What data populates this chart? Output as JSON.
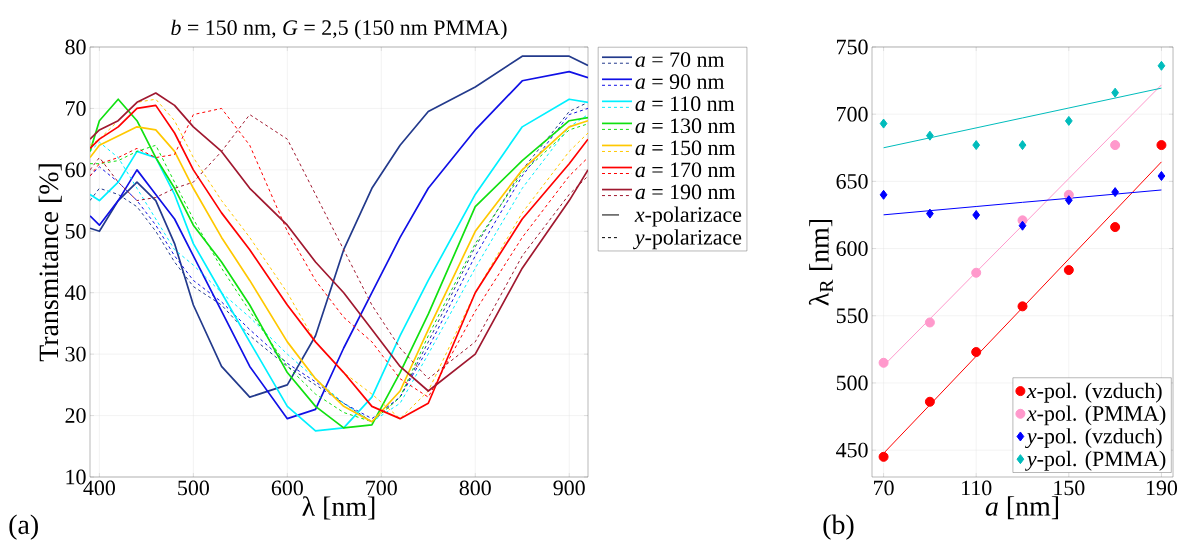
{
  "chart_data": [
    {
      "type": "line",
      "title": "*b* =  150 nm, *G* =  2,5 (150 nm PMMA)",
      "xlabel": "λ [nm]",
      "ylabel": "Transmitance [%]",
      "annotations": [
        "(a)",
        "*x*-polarizace",
        "*y*-polarizace"
      ],
      "x": [
        390,
        400,
        420,
        440,
        460,
        480,
        500,
        530,
        560,
        600,
        630,
        660,
        690,
        720,
        750,
        800,
        850,
        900,
        920
      ],
      "xlim": [
        390,
        920
      ],
      "ylim": [
        10,
        80
      ],
      "xticks": [
        400,
        500,
        600,
        700,
        800,
        900
      ],
      "yticks": [
        10,
        20,
        30,
        40,
        50,
        60,
        70,
        80
      ],
      "grid": true,
      "legend": "right",
      "series": [
        {
          "name": "*a* =  70 nm",
          "color": "#233a8c",
          "line_style": "solid",
          "values": [
            50.5,
            50,
            55,
            58,
            55,
            48,
            38,
            28,
            23,
            25,
            33,
            47,
            57,
            64,
            69.5,
            73.5,
            78.5,
            78.5,
            77
          ]
        },
        {
          "color": "#233a8c",
          "line_style": "dashed",
          "values": [
            55,
            57,
            56,
            54,
            50,
            45,
            41,
            38,
            33,
            28,
            25,
            22,
            19,
            23,
            32,
            47.5,
            60,
            69.5,
            71
          ]
        },
        {
          "name": "*a* =  90 nm",
          "color": "#1010e6",
          "line_style": "solid",
          "values": [
            52.5,
            51,
            55,
            60,
            56,
            52,
            46,
            37,
            28,
            19.5,
            21,
            31,
            40,
            49,
            57,
            66.5,
            74.5,
            76,
            75
          ]
        },
        {
          "color": "#1010e6",
          "line_style": "dashed",
          "values": [
            59,
            60.5,
            58,
            55,
            51,
            46,
            42,
            38.5,
            34,
            28.5,
            25.5,
            22,
            19.5,
            23,
            31,
            46,
            59,
            69,
            70
          ]
        },
        {
          "name": "*a* =  110 nm",
          "color": "#00f0ff",
          "line_style": "solid",
          "values": [
            56,
            55,
            58,
            63,
            62,
            56,
            48,
            40,
            32,
            21.5,
            17.5,
            18,
            23,
            33,
            42,
            56,
            67,
            71.5,
            71
          ]
        },
        {
          "color": "#00f0ff",
          "line_style": "dashed",
          "values": [
            63,
            64.5,
            62,
            57,
            52,
            47,
            44.5,
            40,
            36,
            30,
            26,
            22,
            19,
            22,
            30,
            44,
            57,
            67,
            69
          ]
        },
        {
          "name": "*a* =  130 nm",
          "color": "#10e010",
          "line_style": "solid",
          "values": [
            63,
            68,
            71.5,
            68,
            62,
            57,
            51,
            45,
            38,
            27,
            21.5,
            18,
            18.5,
            27,
            36.5,
            54,
            61.5,
            68,
            68.5
          ]
        },
        {
          "color": "#10e010",
          "line_style": "dashed",
          "values": [
            61,
            61,
            61.5,
            63,
            64,
            58,
            52,
            44,
            37,
            28,
            23.5,
            20.5,
            19,
            23,
            33,
            48,
            59.5,
            66.5,
            67.5
          ]
        },
        {
          "name": "*a* =  150 nm",
          "color": "#ffc800",
          "line_style": "solid",
          "values": [
            62,
            64,
            65.5,
            67,
            66.5,
            63,
            57,
            49,
            42,
            32,
            26,
            21.5,
            19,
            24,
            34,
            50,
            60,
            67,
            68
          ]
        },
        {
          "color": "#ffc800",
          "line_style": "dashed",
          "values": [
            64,
            65,
            68,
            71,
            71.5,
            68,
            62,
            55,
            49,
            40,
            32,
            27,
            23.5,
            19.5,
            24,
            40,
            53,
            63,
            66
          ]
        },
        {
          "name": "*a* =  170 nm",
          "color": "#ff0000",
          "line_style": "solid",
          "values": [
            63.5,
            65,
            67,
            70,
            70.5,
            66,
            60,
            53,
            47,
            38,
            32,
            27,
            21.5,
            19.5,
            22,
            40,
            52,
            61,
            65
          ]
        },
        {
          "color": "#ff0000",
          "line_style": "dashed",
          "values": [
            59,
            61,
            62,
            63.5,
            62,
            62.5,
            69,
            70,
            64,
            50,
            42,
            36,
            32,
            26,
            23,
            37,
            49,
            59,
            62
          ]
        },
        {
          "name": "*a* =  190 nm",
          "color": "#a0182f",
          "line_style": "solid",
          "values": [
            65,
            66.5,
            68,
            71,
            72.5,
            70.5,
            67,
            63,
            57,
            51,
            45,
            40,
            34,
            28,
            24,
            30,
            44,
            55,
            60
          ]
        },
        {
          "color": "#a0182f",
          "line_style": "dashed",
          "values": [
            60,
            62,
            58,
            55,
            55.5,
            57,
            58,
            63,
            69,
            65,
            56,
            47,
            38,
            31,
            26,
            32,
            46,
            56,
            59
          ]
        }
      ]
    },
    {
      "type": "scatter",
      "xlabel": "*a* [nm]",
      "ylabel": "λ$_{R}$ [nm]",
      "annotations": [
        "(b)"
      ],
      "x": [
        70,
        90,
        110,
        130,
        150,
        170,
        190
      ],
      "xlim": [
        65,
        195
      ],
      "ylim": [
        430,
        750
      ],
      "xticks": [
        70,
        110,
        150,
        190
      ],
      "yticks": [
        450,
        500,
        550,
        600,
        650,
        700,
        750
      ],
      "grid": true,
      "legend": "bottom right",
      "series": [
        {
          "type": "line",
          "marker": "none",
          "color": "#ff0000",
          "values": [
            447.6,
            483.7,
            519.9,
            556.0,
            592.2,
            628.3,
            664.5
          ]
        },
        {
          "type": "line",
          "marker": "none",
          "color": "#ff99cc",
          "values": [
            512.8,
            547.6,
            582.5,
            617.3,
            652.1,
            687.0,
            721.8
          ]
        },
        {
          "type": "line",
          "marker": "none",
          "color": "#0000ff",
          "values": [
            625.1,
            628.2,
            631.3,
            634.4,
            637.4,
            640.5,
            643.6
          ]
        },
        {
          "type": "line",
          "marker": "none",
          "color": "#00bcbc",
          "values": [
            675,
            682.4,
            689.8,
            697.2,
            704.6,
            712,
            719.4
          ]
        },
        {
          "name": "*x*-pol. (vzduch)",
          "marker": "circle",
          "color": "#ff0000",
          "values": [
            445,
            486,
            523,
            557,
            584,
            616,
            677
          ]
        },
        {
          "name": "*x*-pol. (PMMA)",
          "marker": "circle",
          "color": "#ff99cc",
          "values": [
            515,
            545,
            582,
            621,
            640,
            677,
            null
          ]
        },
        {
          "name": "*y*-pol. (vzduch)",
          "marker": "diamond",
          "color": "#0000ff",
          "values": [
            640,
            626,
            625,
            617,
            636,
            642,
            654
          ]
        },
        {
          "name": "*y*-pol. (PMMA)",
          "marker": "diamond",
          "color": "#00bcbc",
          "values": [
            693,
            684,
            677,
            677,
            695,
            716,
            736
          ]
        }
      ]
    }
  ]
}
